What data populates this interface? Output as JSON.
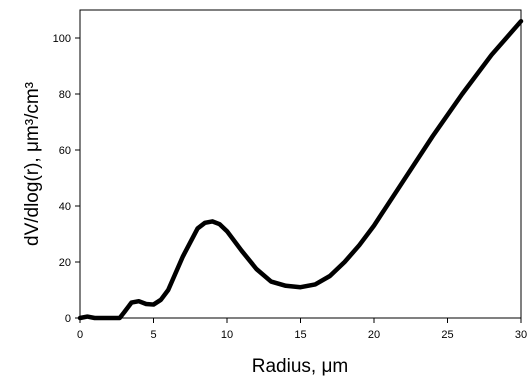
{
  "chart_data": {
    "type": "line",
    "x_label": "Radius, μm",
    "y_label": "dV/dlog(r), μm³/cm³",
    "x": [
      0,
      0.5,
      1,
      2,
      2.7,
      3,
      3.5,
      4,
      4.5,
      5,
      5.5,
      6,
      7,
      8,
      8.5,
      9,
      9.5,
      10,
      11,
      12,
      13,
      14,
      15,
      16,
      17,
      18,
      19,
      20,
      22,
      24,
      26,
      28,
      30
    ],
    "series": [
      {
        "name": "dV/dlog(r)",
        "color": "#000000",
        "values": [
          0,
          0.5,
          0,
          0,
          0,
          2,
          5.5,
          6,
          5,
          4.8,
          6.5,
          10,
          22,
          32,
          34,
          34.5,
          33.5,
          31,
          24,
          17.5,
          13,
          11.5,
          11,
          12,
          15,
          20,
          26,
          33,
          49,
          65,
          80,
          94,
          106
        ]
      }
    ],
    "xlim": [
      0,
      30
    ],
    "xticks": [
      0,
      5,
      10,
      15,
      20,
      25,
      30
    ],
    "ylim": [
      0,
      110
    ],
    "yticks": [
      0,
      20,
      40,
      60,
      80,
      100
    ]
  }
}
